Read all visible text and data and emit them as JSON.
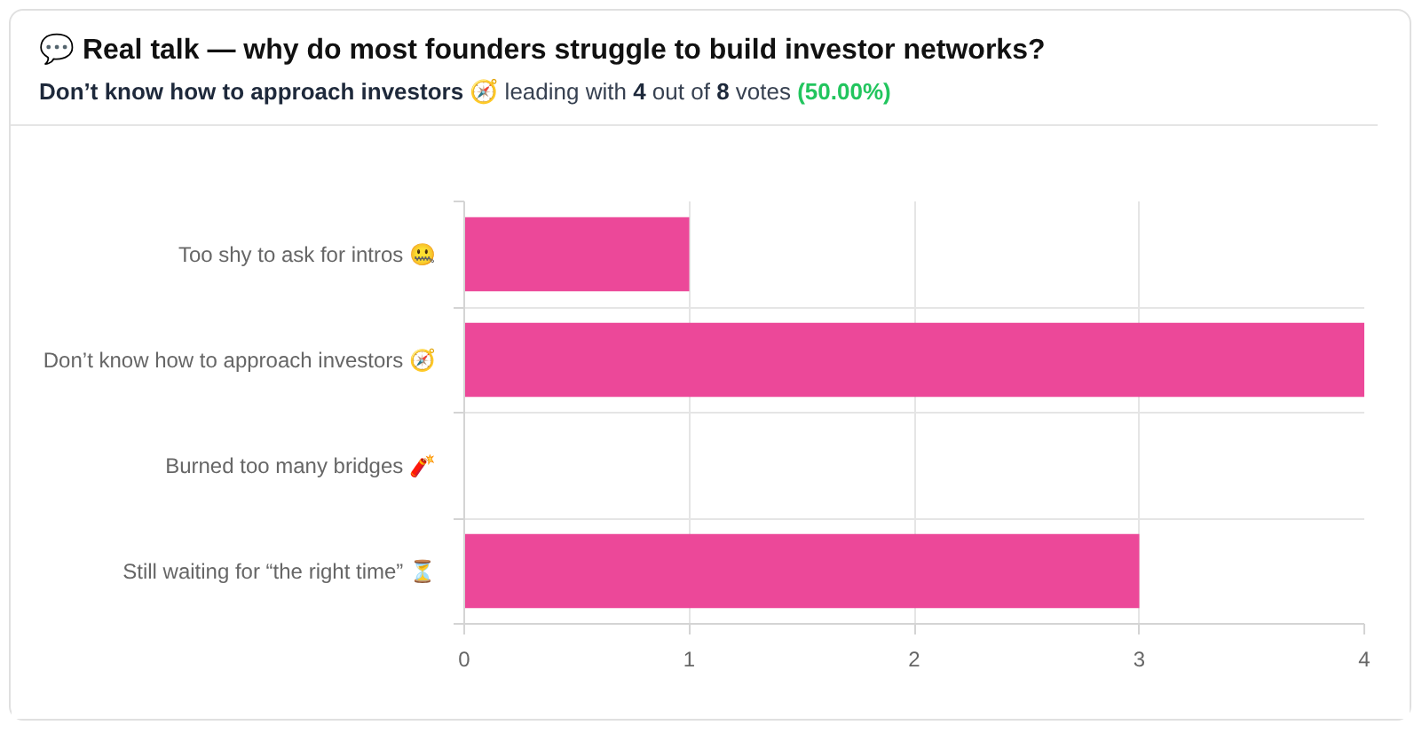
{
  "chart_data": {
    "type": "bar",
    "orientation": "horizontal",
    "title": "💬 Real talk — why do most founders struggle to build investor networks?",
    "subtitle": "Don’t know how to approach investors 🧭 leading with 4 out of 8 votes (50.00%)",
    "categories": [
      "Too shy to ask for intros 🤐",
      "Don’t know how to approach investors 🧭",
      "Burned too many bridges 🧨",
      "Still waiting for “the right time” ⏳"
    ],
    "values": [
      1,
      4,
      0,
      3
    ],
    "color": "#ec4899",
    "xlim": [
      0,
      4
    ],
    "xticks": [
      0,
      1,
      2,
      3,
      4
    ],
    "grid": true
  }
}
